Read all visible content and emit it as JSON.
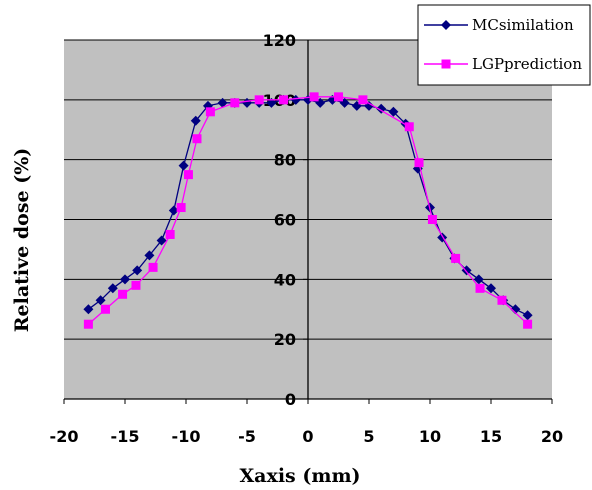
{
  "chart_data": {
    "type": "line",
    "title": "",
    "xlabel": "Xaxis (mm)",
    "ylabel": "Relative dose (%)",
    "xlim": [
      -20,
      20
    ],
    "ylim": [
      0,
      120
    ],
    "xticks": [
      -20,
      -15,
      -10,
      -5,
      0,
      5,
      10,
      15,
      20
    ],
    "yticks": [
      0,
      20,
      40,
      60,
      80,
      100,
      120
    ],
    "grid": "horizontal",
    "legend_position": "top-right",
    "colors": {
      "plot_background": "#c0c0c0",
      "mc": "#000080",
      "lgp": "#ff00ff"
    },
    "series": [
      {
        "name": "MCsimilation",
        "marker": "diamond",
        "color": "#000080",
        "x": [
          -18,
          -17,
          -16,
          -15,
          -14,
          -13,
          -12,
          -11,
          -10.2,
          -9.2,
          -8.2,
          -7,
          -6,
          -5,
          -4,
          -3,
          -2,
          -1,
          0,
          1,
          2,
          3,
          4,
          5,
          6,
          7,
          8,
          9,
          10,
          11,
          12,
          13,
          14,
          15,
          16,
          17,
          18
        ],
        "y": [
          30,
          33,
          37,
          40,
          43,
          48,
          53,
          63,
          78,
          93,
          98,
          99,
          99,
          99,
          99,
          99,
          100,
          100,
          100,
          99,
          100,
          99,
          98,
          98,
          97,
          96,
          92,
          77,
          64,
          54,
          47,
          43,
          40,
          37,
          33,
          30,
          28
        ]
      },
      {
        "name": "LGPprediction",
        "marker": "square",
        "color": "#ff00ff",
        "x": [
          -18,
          -16.6,
          -15.2,
          -14.1,
          -12.7,
          -11.3,
          -10.4,
          -9.8,
          -9.1,
          -8,
          -6,
          -4,
          -2,
          0.5,
          2.5,
          4.5,
          8.3,
          9.1,
          10.2,
          12.1,
          14.1,
          15.9,
          18
        ],
        "y": [
          25,
          30,
          35,
          38,
          44,
          55,
          64,
          75,
          87,
          96,
          99,
          100,
          100,
          101,
          101,
          100,
          91,
          79,
          60,
          47,
          37,
          33,
          25
        ]
      }
    ]
  }
}
